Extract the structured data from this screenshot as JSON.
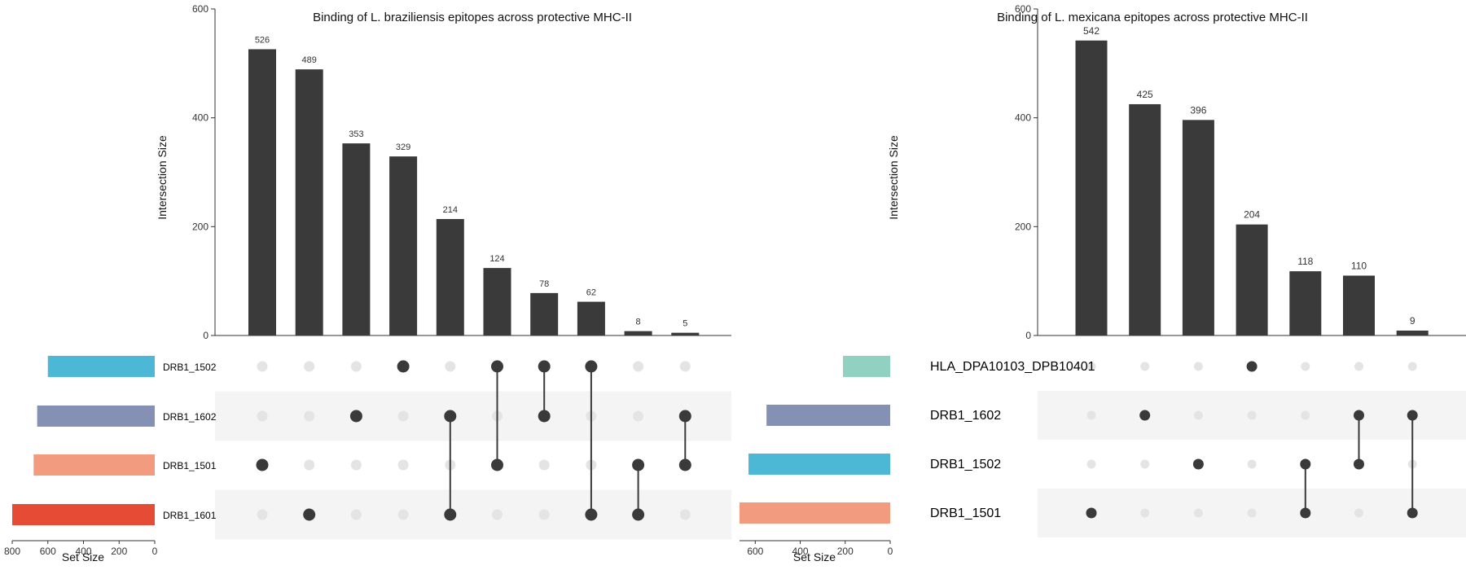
{
  "chart_data": [
    {
      "type": "bar",
      "title": "Binding of L. braziliensis epitopes across protective MHC-II",
      "ylabel": "Intersection Size",
      "ylim": [
        0,
        600
      ],
      "yticks": [
        0,
        200,
        400,
        600
      ],
      "intersection_sizes": [
        526,
        489,
        353,
        329,
        214,
        124,
        78,
        62,
        8,
        5
      ],
      "sets": [
        {
          "name": "DRB1_1502",
          "color": "#4DB8D6",
          "size": 600
        },
        {
          "name": "DRB1_1602",
          "color": "#8491B4",
          "size": 660
        },
        {
          "name": "DRB1_1501",
          "color": "#F39B7F",
          "size": 680
        },
        {
          "name": "DRB1_1601",
          "color": "#E64B35",
          "size": 800
        }
      ],
      "intersections": [
        [
          2
        ],
        [
          3
        ],
        [
          1
        ],
        [
          0
        ],
        [
          1,
          3
        ],
        [
          0,
          2
        ],
        [
          0,
          1
        ],
        [
          0,
          3
        ],
        [
          2,
          3
        ],
        [
          1,
          2
        ]
      ],
      "set_size_label": "Set Size",
      "set_size_ticks": [
        800,
        600,
        400,
        200,
        0
      ]
    },
    {
      "type": "bar",
      "title": "Binding of L. mexicana epitopes across protective MHC-II",
      "ylabel": "Intersection Size",
      "ylim": [
        0,
        600
      ],
      "yticks": [
        0,
        200,
        400,
        600
      ],
      "intersection_sizes": [
        542,
        425,
        396,
        204,
        118,
        110,
        9
      ],
      "sets": [
        {
          "name": "HLA_DPA10103_DPB10401",
          "color": "#91D1C2",
          "size": 210
        },
        {
          "name": "DRB1_1602",
          "color": "#8491B4",
          "size": 550
        },
        {
          "name": "DRB1_1502",
          "color": "#4DB8D6",
          "size": 630
        },
        {
          "name": "DRB1_1501",
          "color": "#F39B7F",
          "size": 670
        }
      ],
      "intersections": [
        [
          3
        ],
        [
          1
        ],
        [
          2
        ],
        [
          0
        ],
        [
          2,
          3
        ],
        [
          1,
          2
        ],
        [
          1,
          3
        ]
      ],
      "set_size_label": "Set Size",
      "set_size_ticks": [
        600,
        400,
        200,
        0
      ]
    }
  ]
}
